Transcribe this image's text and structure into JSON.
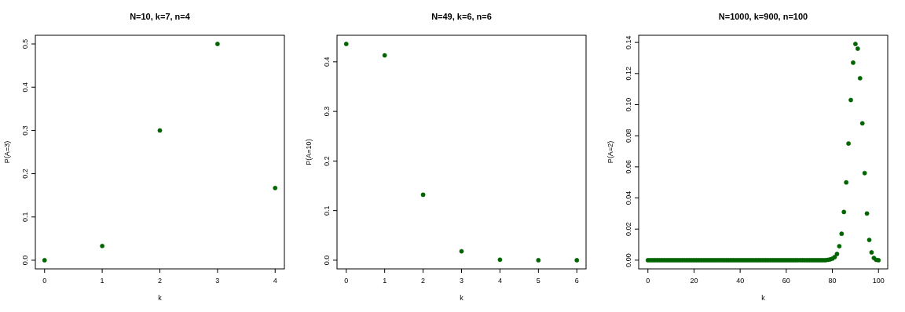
{
  "chart_data": [
    {
      "type": "scatter",
      "title": "N=10, k=7, n=4",
      "xlabel": "k",
      "ylabel": "P(A=3)",
      "marker": "circle",
      "x": [
        0,
        1,
        2,
        3,
        4
      ],
      "series": [
        {
          "color": "#006400",
          "values": [
            0,
            0.033,
            0.3,
            0.5,
            0.167
          ]
        }
      ],
      "xlim": [
        -0.16,
        4.16
      ],
      "xticks": [
        0,
        1,
        2,
        3,
        4
      ],
      "ylim": [
        -0.02,
        0.52
      ],
      "yticks": [
        {
          "value": 0,
          "label": "0.0"
        },
        {
          "value": 0.1,
          "label": "0.1"
        },
        {
          "value": 0.2,
          "label": "0.2"
        },
        {
          "value": 0.3,
          "label": "0.3"
        },
        {
          "value": 0.4,
          "label": "0.4"
        },
        {
          "value": 0.5,
          "label": "0.5"
        }
      ]
    },
    {
      "type": "scatter",
      "title": "N=49, k=6, n=6",
      "xlabel": "k",
      "ylabel": "P(A=10)",
      "marker": "circle",
      "x": [
        0,
        1,
        2,
        3,
        4,
        5,
        6
      ],
      "series": [
        {
          "color": "#006400",
          "values": [
            0.436,
            0.413,
            0.132,
            0.018,
            0.001,
            0,
            0
          ]
        }
      ],
      "xlim": [
        -0.24,
        6.24
      ],
      "xticks": [
        0,
        1,
        2,
        3,
        4,
        5,
        6
      ],
      "ylim": [
        -0.0175,
        0.4535
      ],
      "yticks": [
        {
          "value": 0,
          "label": "0.0"
        },
        {
          "value": 0.1,
          "label": "0.1"
        },
        {
          "value": 0.2,
          "label": "0.2"
        },
        {
          "value": 0.3,
          "label": "0.3"
        },
        {
          "value": 0.4,
          "label": "0.4"
        }
      ]
    },
    {
      "type": "scatter",
      "title": "N=1000, k=900, n=100",
      "xlabel": "k",
      "ylabel": "P(A=2)",
      "marker": "circle",
      "x": [
        0,
        1,
        2,
        3,
        4,
        5,
        6,
        7,
        8,
        9,
        10,
        11,
        12,
        13,
        14,
        15,
        16,
        17,
        18,
        19,
        20,
        21,
        22,
        23,
        24,
        25,
        26,
        27,
        28,
        29,
        30,
        31,
        32,
        33,
        34,
        35,
        36,
        37,
        38,
        39,
        40,
        41,
        42,
        43,
        44,
        45,
        46,
        47,
        48,
        49,
        50,
        51,
        52,
        53,
        54,
        55,
        56,
        57,
        58,
        59,
        60,
        61,
        62,
        63,
        64,
        65,
        66,
        67,
        68,
        69,
        70,
        71,
        72,
        73,
        74,
        75,
        76,
        77,
        78,
        79,
        80,
        81,
        82,
        83,
        84,
        85,
        86,
        87,
        88,
        89,
        90,
        91,
        92,
        93,
        94,
        95,
        96,
        97,
        98,
        99,
        100
      ],
      "series": [
        {
          "color": "#006400",
          "values": [
            0,
            0,
            0,
            0,
            0,
            0,
            0,
            0,
            0,
            0,
            0,
            0,
            0,
            0,
            0,
            0,
            0,
            0,
            0,
            0,
            0,
            0,
            0,
            0,
            0,
            0,
            0,
            0,
            0,
            0,
            0,
            0,
            0,
            0,
            0,
            0,
            0,
            0,
            0,
            0,
            0,
            0,
            0,
            0,
            0,
            0,
            0,
            0,
            0,
            0,
            0,
            0,
            0,
            0,
            0,
            0,
            0,
            0,
            0,
            0,
            0,
            0,
            0,
            0,
            0,
            0,
            0,
            0,
            0,
            0,
            0,
            0,
            0,
            0,
            0,
            0,
            0,
            0,
            0.0002,
            0.0005,
            0.001,
            0.002,
            0.004,
            0.009,
            0.017,
            0.031,
            0.05,
            0.075,
            0.103,
            0.127,
            0.139,
            0.136,
            0.117,
            0.088,
            0.056,
            0.03,
            0.013,
            0.005,
            0.0014,
            0.0002,
            0
          ]
        }
      ],
      "xlim": [
        -4,
        104
      ],
      "xticks": [
        0,
        20,
        40,
        60,
        80,
        100
      ],
      "ylim": [
        -0.0056,
        0.1446
      ],
      "yticks": [
        {
          "value": 0,
          "label": "0.00"
        },
        {
          "value": 0.02,
          "label": "0.02"
        },
        {
          "value": 0.04,
          "label": "0.04"
        },
        {
          "value": 0.06,
          "label": "0.06"
        },
        {
          "value": 0.08,
          "label": "0.08"
        },
        {
          "value": 0.1,
          "label": "0.10"
        },
        {
          "value": 0.12,
          "label": "0.12"
        },
        {
          "value": 0.14,
          "label": "0.14"
        }
      ]
    }
  ]
}
